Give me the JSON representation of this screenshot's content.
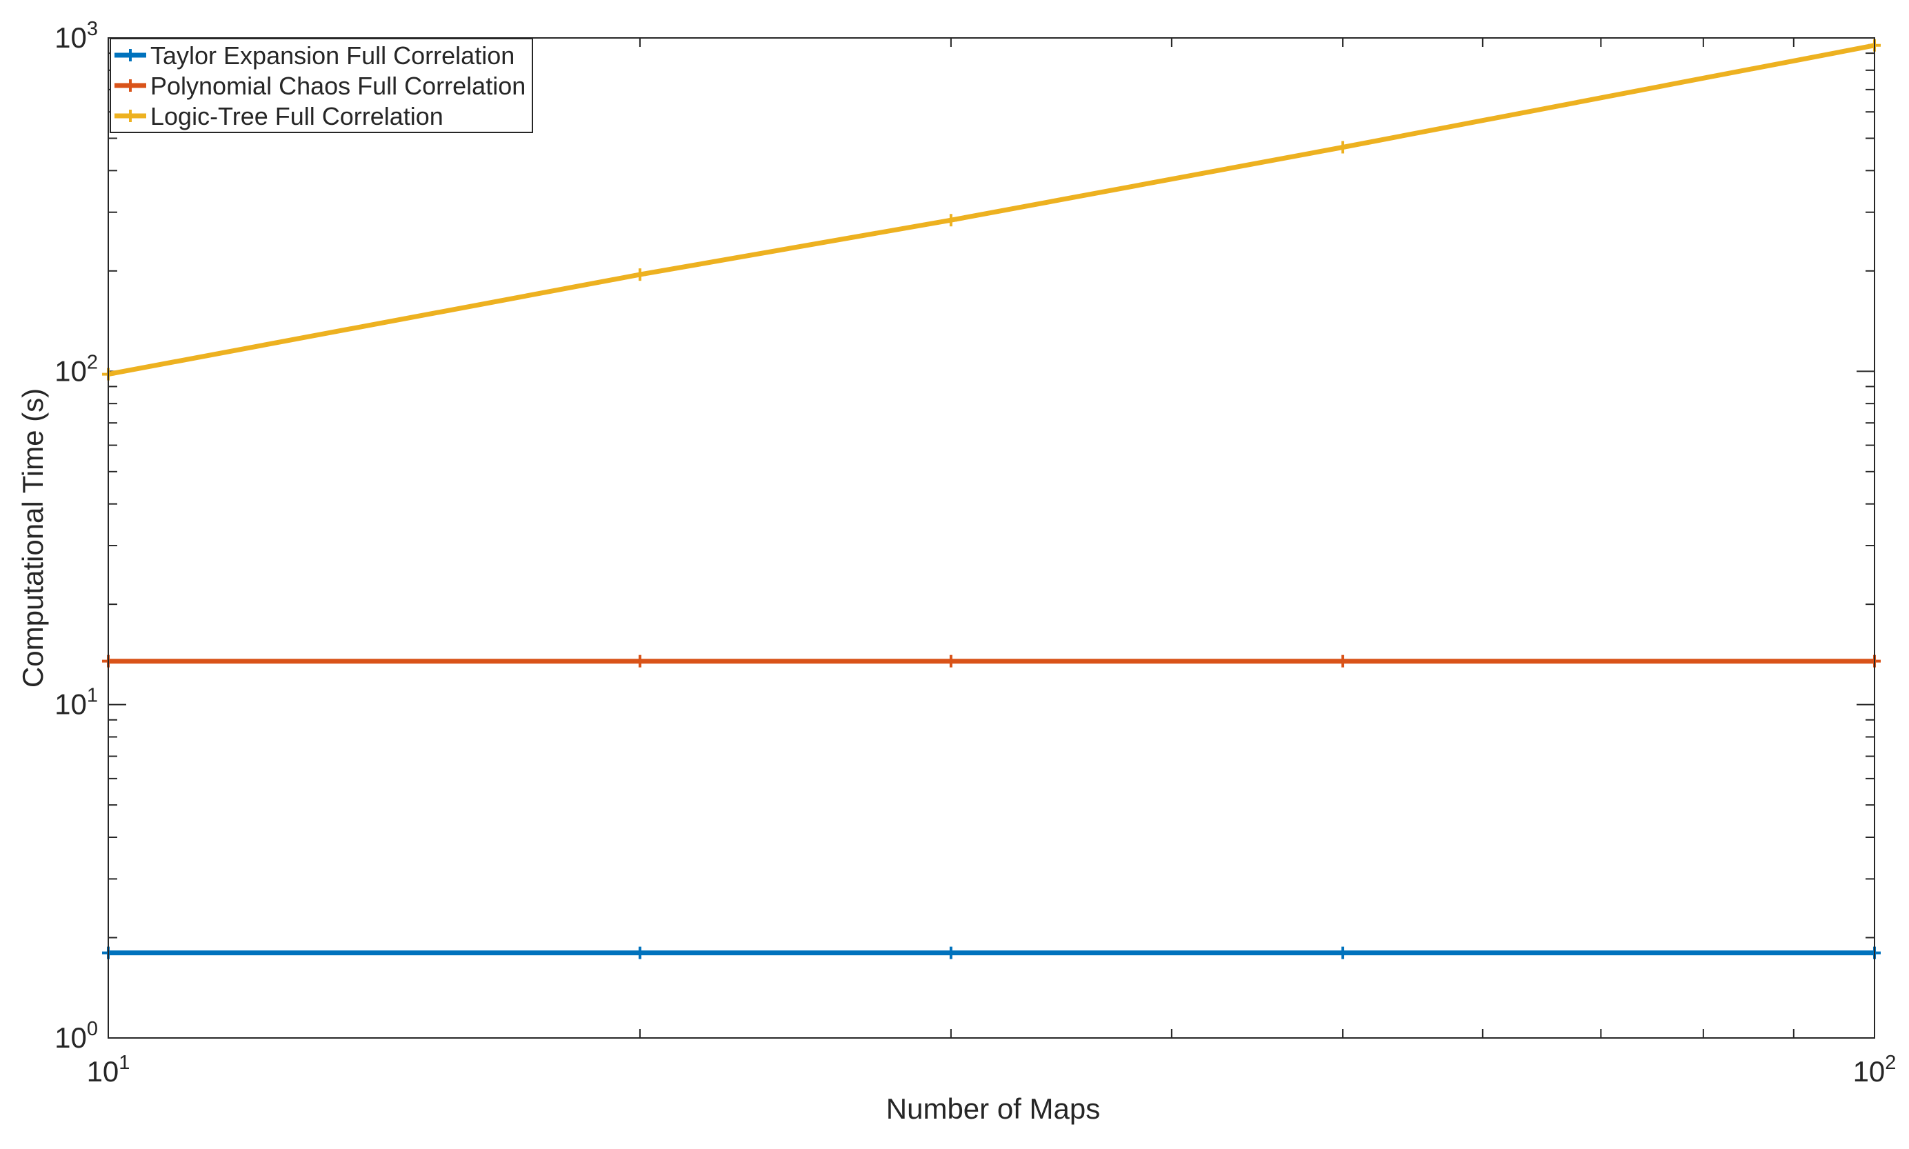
{
  "chart_data": {
    "type": "line",
    "title": "",
    "xlabel": "Number of Maps",
    "ylabel": "Computational Time (s)",
    "xscale": "log",
    "yscale": "log",
    "xlim": [
      10,
      100
    ],
    "ylim": [
      1,
      1000
    ],
    "x_ticks": [
      {
        "value": 10,
        "base": "10",
        "exp": "1"
      },
      {
        "value": 100,
        "base": "10",
        "exp": "2"
      }
    ],
    "y_ticks": [
      {
        "value": 1,
        "base": "10",
        "exp": "0"
      },
      {
        "value": 10,
        "base": "10",
        "exp": "1"
      },
      {
        "value": 100,
        "base": "10",
        "exp": "2"
      },
      {
        "value": 1000,
        "base": "10",
        "exp": "3"
      }
    ],
    "grid": false,
    "box": true,
    "legend_position": "top-left",
    "x": [
      10,
      20,
      30,
      50,
      100
    ],
    "series": [
      {
        "name": "Taylor Expansion Full Correlation",
        "color": "#0072BD",
        "values": [
          1.8,
          1.8,
          1.8,
          1.8,
          1.8
        ]
      },
      {
        "name": "Polynomial Chaos Full Correlation",
        "color": "#D95319",
        "values": [
          13.5,
          13.5,
          13.5,
          13.5,
          13.5
        ]
      },
      {
        "name": "Logic-Tree Full Correlation",
        "color": "#EDB120",
        "values": [
          98,
          195,
          284,
          470,
          950
        ]
      }
    ]
  }
}
